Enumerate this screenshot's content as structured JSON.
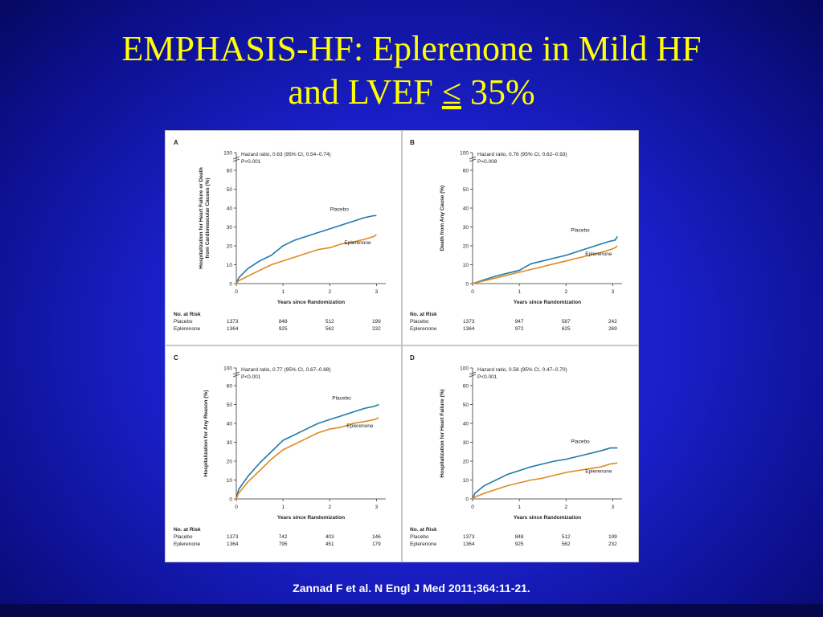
{
  "title": {
    "line1": "EMPHASIS-HF: Eplerenone in Mild HF",
    "line2_prefix": "and LVEF ",
    "line2_symbol": "≤",
    "line2_suffix": " 35%"
  },
  "citation": "Zannad F et al. N Engl J Med 2011;364:11-21.",
  "colors": {
    "placebo": "#1f7aa6",
    "eplerenone": "#e08a1e",
    "title": "#ffff00"
  },
  "chart_data": [
    {
      "panel": "A",
      "type": "line",
      "ylabel": [
        "Hospitalization for Heart Failure or Death",
        "from Cardiovascular Causes (%)"
      ],
      "xlabel": "Years since Randomization",
      "yticks": [
        0,
        10,
        20,
        30,
        40,
        50,
        60,
        100
      ],
      "xticks": [
        0,
        1,
        2,
        3
      ],
      "annotation": [
        "Hazard ratio, 0.63 (95% CI, 0.54–0.74)",
        "P<0.001"
      ],
      "series": [
        {
          "name": "Placebo",
          "x": [
            0,
            0.05,
            0.25,
            0.5,
            0.75,
            1,
            1.25,
            1.5,
            1.75,
            2,
            2.25,
            2.5,
            2.75,
            2.95,
            3.0
          ],
          "y": [
            0,
            3,
            8,
            12,
            15,
            20,
            23,
            25,
            27,
            29,
            31,
            33,
            35,
            36,
            36
          ]
        },
        {
          "name": "Eplerenone",
          "x": [
            0,
            0.05,
            0.25,
            0.5,
            0.75,
            1,
            1.25,
            1.5,
            1.75,
            2,
            2.25,
            2.5,
            2.75,
            2.95,
            3.0
          ],
          "y": [
            0,
            1.5,
            4,
            7,
            10,
            12,
            14,
            16,
            18,
            19,
            21,
            22,
            23.5,
            25,
            26
          ]
        }
      ],
      "risk_header": "No. at Risk",
      "risk": [
        {
          "label": "Placebo",
          "values": [
            "1373",
            "848",
            "512",
            "199"
          ]
        },
        {
          "label": "Eplerenone",
          "values": [
            "1364",
            "925",
            "562",
            "232"
          ]
        }
      ]
    },
    {
      "panel": "B",
      "type": "line",
      "ylabel": [
        "Death from Any Cause (%)"
      ],
      "xlabel": "Years since Randomization",
      "yticks": [
        0,
        10,
        20,
        30,
        40,
        50,
        60,
        100
      ],
      "xticks": [
        0,
        1,
        2,
        3
      ],
      "annotation": [
        "Hazard ratio, 0.76 (95% CI, 0.62–0.93)",
        "P=0.008"
      ],
      "series": [
        {
          "name": "Placebo",
          "x": [
            0,
            0.25,
            0.5,
            0.75,
            1,
            1.25,
            1.5,
            1.75,
            2,
            2.25,
            2.5,
            2.75,
            2.95,
            3.05,
            3.1
          ],
          "y": [
            0,
            2,
            4,
            5.5,
            7,
            10.5,
            12,
            13.5,
            15,
            17,
            19,
            21,
            22.5,
            23,
            25
          ]
        },
        {
          "name": "Eplerenone",
          "x": [
            0,
            0.25,
            0.5,
            0.75,
            1,
            1.25,
            1.5,
            1.75,
            2,
            2.25,
            2.5,
            2.75,
            2.95,
            3.05,
            3.1
          ],
          "y": [
            0,
            1.5,
            3,
            4.5,
            6,
            7.5,
            9,
            10.5,
            12,
            13.5,
            15,
            16.5,
            18,
            19,
            20
          ]
        }
      ],
      "risk_header": "No. at Risk",
      "risk": [
        {
          "label": "Placebo",
          "values": [
            "1373",
            "947",
            "587",
            "242"
          ]
        },
        {
          "label": "Eplerenone",
          "values": [
            "1364",
            "972",
            "625",
            "269"
          ]
        }
      ]
    },
    {
      "panel": "C",
      "type": "line",
      "ylabel": [
        "Hospitalization for Any Reason (%)"
      ],
      "xlabel": "Years since Randomization",
      "yticks": [
        0,
        10,
        20,
        30,
        40,
        50,
        60,
        100
      ],
      "xticks": [
        0,
        1,
        2,
        3
      ],
      "annotation": [
        "Hazard ratio, 0.77 (95% CI, 0.67–0.88)",
        "P<0.001"
      ],
      "series": [
        {
          "name": "Placebo",
          "x": [
            0,
            0.05,
            0.25,
            0.5,
            0.75,
            1,
            1.25,
            1.5,
            1.75,
            2,
            2.25,
            2.5,
            2.75,
            2.95,
            3.05
          ],
          "y": [
            0,
            5,
            12,
            19,
            25,
            31,
            34,
            37,
            40,
            42,
            44,
            46,
            48,
            49,
            50
          ]
        },
        {
          "name": "Eplerenone",
          "x": [
            0,
            0.05,
            0.25,
            0.5,
            0.75,
            1,
            1.25,
            1.5,
            1.75,
            2,
            2.25,
            2.5,
            2.75,
            2.95,
            3.05
          ],
          "y": [
            0,
            3,
            9,
            15,
            21,
            26,
            29,
            32,
            35,
            37,
            38,
            40,
            41,
            42,
            43
          ]
        }
      ],
      "risk_header": "No. at Risk",
      "risk": [
        {
          "label": "Placebo",
          "values": [
            "1373",
            "742",
            "403",
            "146"
          ]
        },
        {
          "label": "Eplerenone",
          "values": [
            "1364",
            "795",
            "451",
            "179"
          ]
        }
      ]
    },
    {
      "panel": "D",
      "type": "line",
      "ylabel": [
        "Hospitalization for Heart Failure (%)"
      ],
      "xlabel": "Years since Randomization",
      "yticks": [
        0,
        10,
        20,
        30,
        40,
        50,
        60,
        100
      ],
      "xticks": [
        0,
        1,
        2,
        3
      ],
      "annotation": [
        "Hazard ratio, 0.58 (95% CI, 0.47–0.70)",
        "P<0.001"
      ],
      "series": [
        {
          "name": "Placebo",
          "x": [
            0,
            0.05,
            0.25,
            0.5,
            0.75,
            1,
            1.25,
            1.5,
            1.75,
            2,
            2.25,
            2.5,
            2.75,
            2.95,
            3.1
          ],
          "y": [
            0,
            3,
            7,
            10,
            13,
            15,
            17,
            18.5,
            20,
            21,
            22.5,
            24,
            25.5,
            27,
            27
          ]
        },
        {
          "name": "Eplerenone",
          "x": [
            0,
            0.05,
            0.25,
            0.5,
            0.75,
            1,
            1.25,
            1.5,
            1.75,
            2,
            2.25,
            2.5,
            2.75,
            2.95,
            3.1
          ],
          "y": [
            0,
            1,
            3,
            5,
            7,
            8.5,
            10,
            11,
            12.5,
            14,
            15,
            16,
            17,
            18.5,
            19
          ]
        }
      ],
      "risk_header": "No. at Risk",
      "risk": [
        {
          "label": "Placebo",
          "values": [
            "1373",
            "848",
            "512",
            "199"
          ]
        },
        {
          "label": "Eplerenone",
          "values": [
            "1364",
            "925",
            "562",
            "232"
          ]
        }
      ]
    }
  ]
}
